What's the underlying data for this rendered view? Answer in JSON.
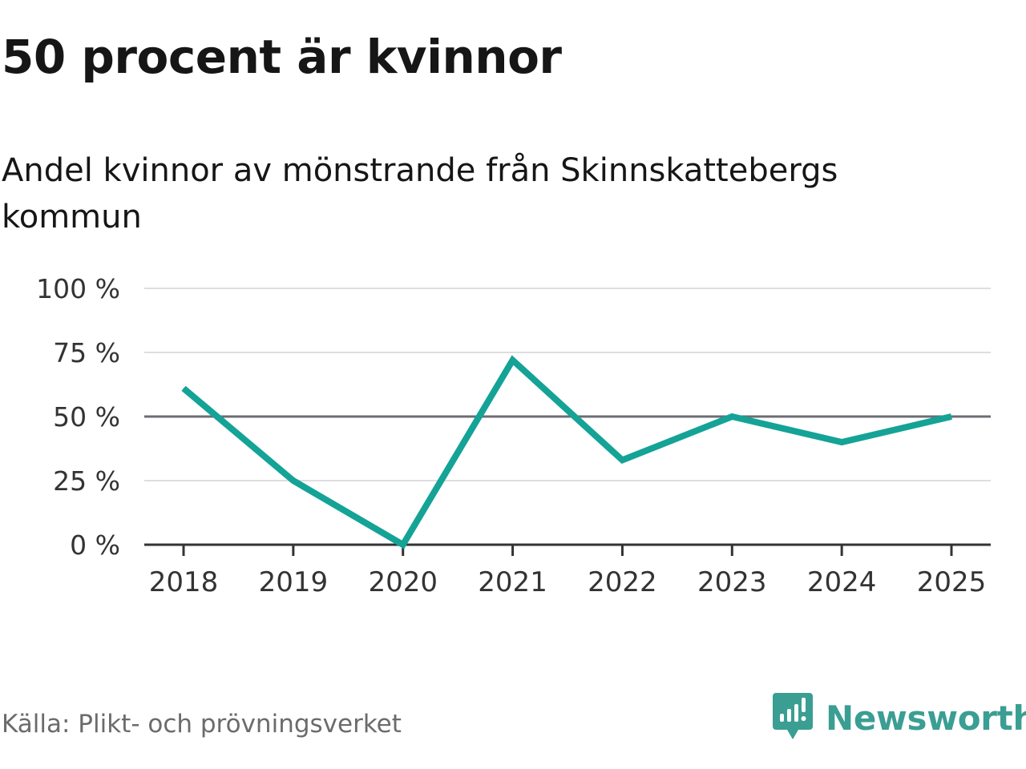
{
  "title": "50 procent är kvinnor",
  "subtitle": "Andel kvinnor av mönstrande från Skinnskattebergs kommun",
  "source": "Källa: Plikt- och prövningsverket",
  "brand": {
    "name": "Newsworthy",
    "icon": "newsworthy-logo-icon",
    "color": "#3a9e93"
  },
  "chart_data": {
    "type": "line",
    "title": "50 procent är kvinnor",
    "subtitle": "Andel kvinnor av mönstrande från Skinnskattebergs kommun",
    "xlabel": "",
    "ylabel": "",
    "categories": [
      "2018",
      "2019",
      "2020",
      "2021",
      "2022",
      "2023",
      "2024",
      "2025"
    ],
    "series": [
      {
        "name": "Andel kvinnor",
        "values": [
          61,
          25,
          0,
          72,
          33,
          50,
          40,
          50
        ],
        "color": "#14a396"
      }
    ],
    "ylim": [
      0,
      100
    ],
    "yticks": [
      0,
      25,
      50,
      75,
      100
    ],
    "ytick_labels": [
      "0 %",
      "25 %",
      "50 %",
      "75 %",
      "100 %"
    ],
    "reference_line": {
      "value": 50,
      "color": "#6c6c74"
    },
    "grid": true,
    "grid_color": "#dedede",
    "axis_color": "#333333",
    "legend": "none"
  }
}
